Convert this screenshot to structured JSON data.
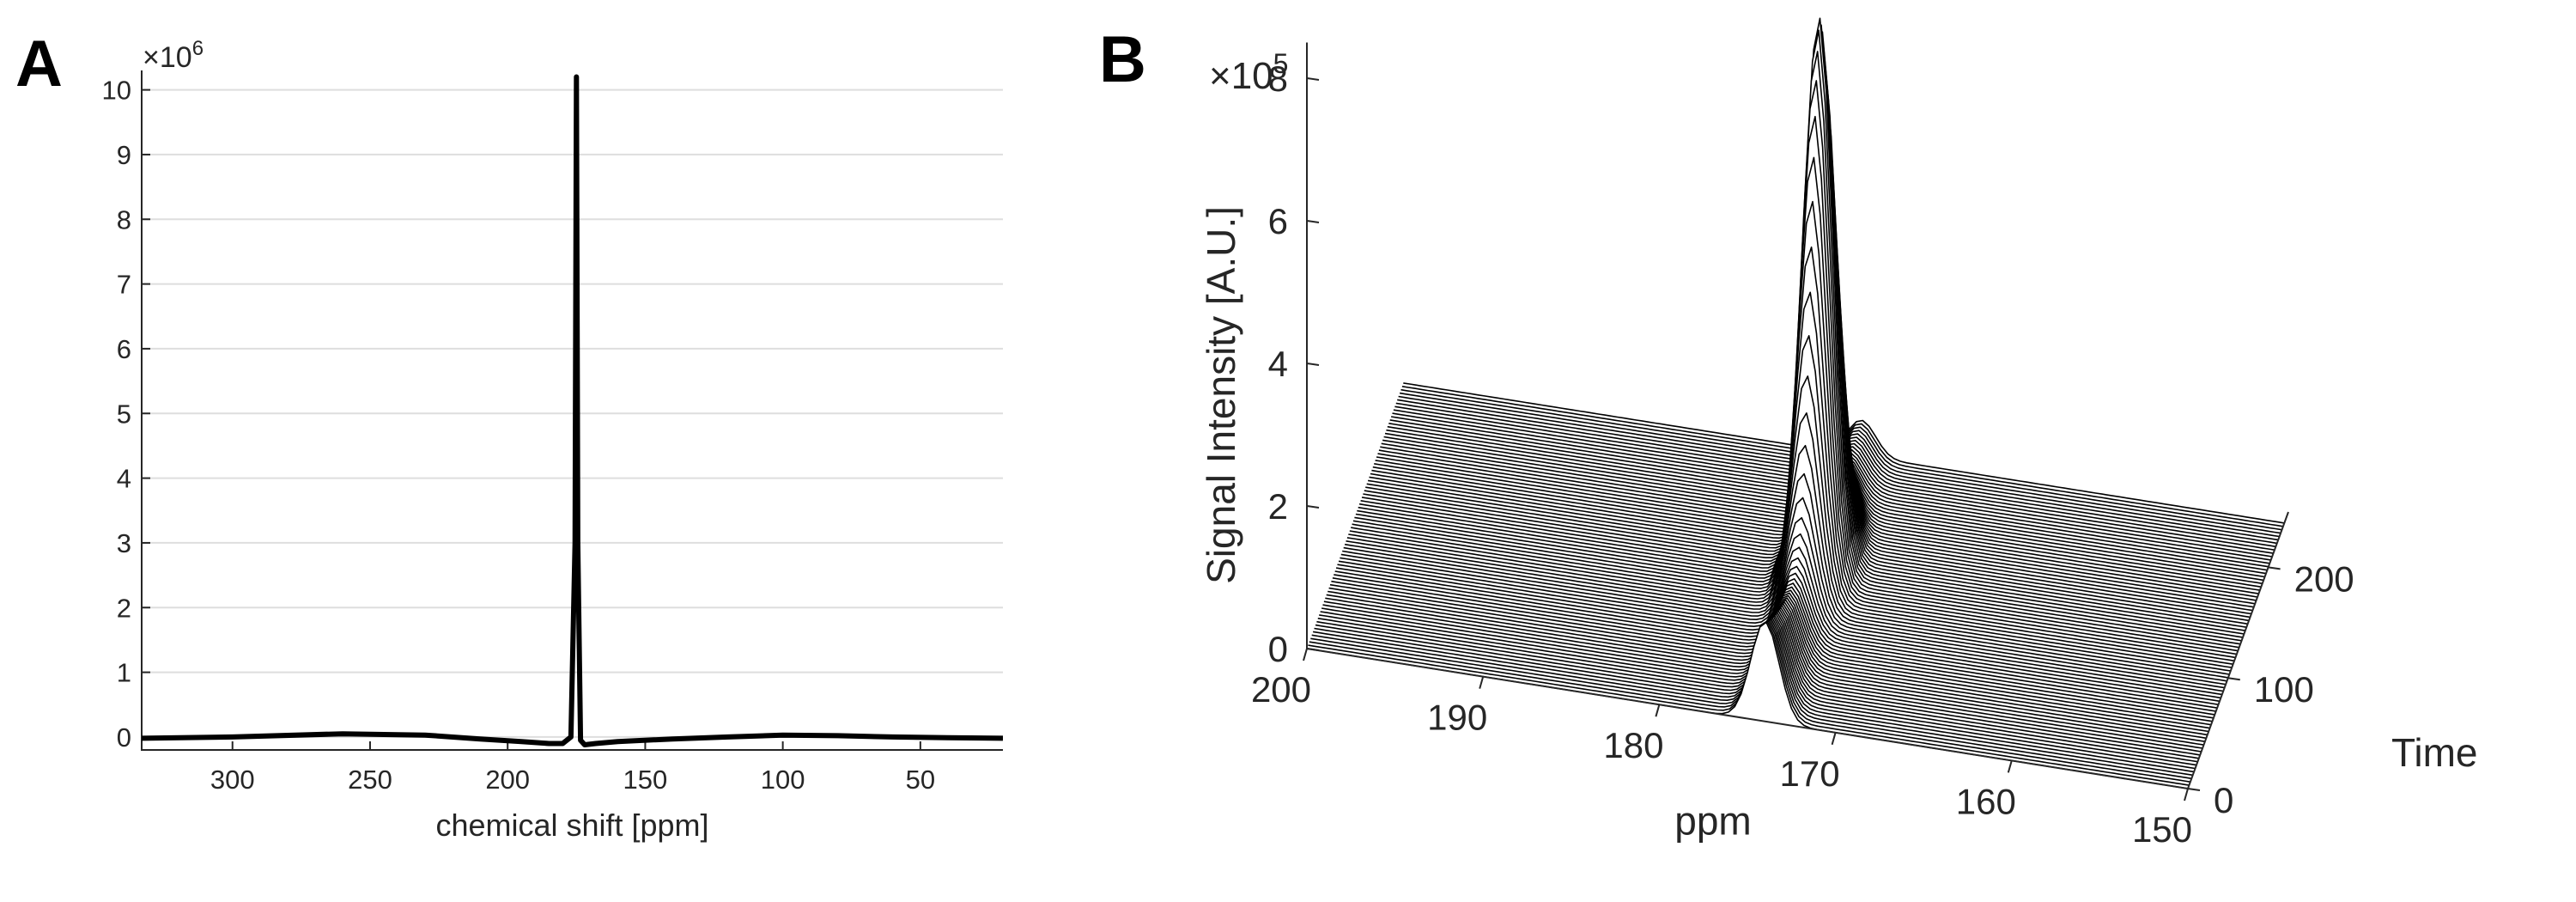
{
  "chart_data": [
    {
      "panel": "A",
      "type": "line",
      "xlabel": "chemical shift [ppm]",
      "ylabel": "",
      "y_exponent_base": "×10",
      "y_exponent_power": "6",
      "x_reversed": true,
      "xlim": [
        333,
        20
      ],
      "ylim": [
        -0.2,
        10.3
      ],
      "x_ticks": [
        300,
        250,
        200,
        150,
        100,
        50
      ],
      "y_ticks": [
        0,
        1,
        2,
        3,
        4,
        5,
        6,
        7,
        8,
        9,
        10
      ],
      "grid": "horizontal",
      "series": [
        {
          "x": [
            333,
            300,
            260,
            230,
            210,
            195,
            185,
            180,
            177,
            175.5,
            175,
            174.5,
            173.5,
            172,
            168,
            160,
            140,
            120,
            100,
            80,
            60,
            40,
            20
          ],
          "y": [
            -0.02,
            0.0,
            0.05,
            0.03,
            -0.03,
            -0.07,
            -0.1,
            -0.1,
            0.0,
            3.0,
            10.2,
            3.0,
            -0.05,
            -0.12,
            -0.1,
            -0.07,
            -0.03,
            0.0,
            0.03,
            0.02,
            0.0,
            -0.01,
            -0.02
          ]
        }
      ]
    },
    {
      "panel": "B",
      "type": "area",
      "view": "3d-waterfall",
      "xlabel": "ppm",
      "ylabel": "Time",
      "zlabel": "Signal Intensity [A.U.]",
      "z_exponent_base": "×10",
      "z_exponent_power": "5",
      "x_reversed": true,
      "xlim": [
        200,
        150
      ],
      "ylim": [
        0,
        250
      ],
      "zlim": [
        0,
        8.5
      ],
      "x_ticks": [
        200,
        190,
        180,
        170,
        160,
        150
      ],
      "y_ticks": [
        0,
        100,
        200
      ],
      "z_ticks": [
        0,
        2,
        4,
        6,
        8
      ],
      "grid": false,
      "peak": {
        "center_ppm": 174,
        "max_intensity": 7.7,
        "decay_minimum": 0.5,
        "time_of_max": 135,
        "n_traces": 80
      }
    }
  ]
}
